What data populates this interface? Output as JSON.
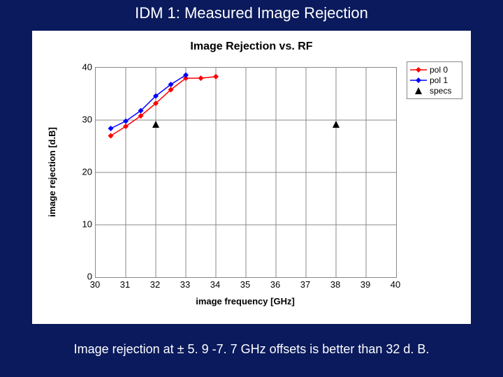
{
  "slide": {
    "title": "IDM 1: Measured Image Rejection",
    "caption": "Image rejection at ± 5. 9 -7. 7 GHz offsets is better than 32 d. B.",
    "background_color": "#0a1a5c"
  },
  "chart": {
    "type": "line",
    "title": "Image Rejection vs. RF",
    "title_fontsize": 16,
    "background_color": "#ffffff",
    "grid_color": "#888888",
    "x": {
      "label": "image frequency [GHz]",
      "min": 30,
      "max": 40,
      "ticks": [
        30,
        31,
        32,
        33,
        34,
        35,
        36,
        37,
        38,
        39,
        40
      ],
      "major_gridlines": [
        31,
        32,
        33,
        34,
        35,
        36,
        37,
        38,
        39
      ],
      "label_fontsize": 13
    },
    "y": {
      "label": "image rejection [d.B]",
      "min": 0,
      "max": 40,
      "ticks": [
        0,
        10,
        20,
        30,
        40
      ],
      "major_gridlines": [
        10,
        20,
        30
      ],
      "label_fontsize": 13
    },
    "series": [
      {
        "name": "pol 0",
        "color": "#ff0000",
        "marker": "diamond",
        "marker_size": 4,
        "line_width": 1.5,
        "points": [
          {
            "x": 30.5,
            "y": 27.0
          },
          {
            "x": 31.0,
            "y": 28.8
          },
          {
            "x": 31.5,
            "y": 30.8
          },
          {
            "x": 32.0,
            "y": 33.2
          },
          {
            "x": 32.5,
            "y": 35.8
          },
          {
            "x": 33.0,
            "y": 38.0
          },
          {
            "x": 33.5,
            "y": 38.0
          },
          {
            "x": 34.0,
            "y": 38.3
          }
        ]
      },
      {
        "name": "pol 1",
        "color": "#0000ff",
        "marker": "diamond",
        "marker_size": 4,
        "line_width": 1.5,
        "points": [
          {
            "x": 30.5,
            "y": 28.4
          },
          {
            "x": 31.0,
            "y": 29.8
          },
          {
            "x": 31.5,
            "y": 31.8
          },
          {
            "x": 32.0,
            "y": 34.6
          },
          {
            "x": 32.5,
            "y": 36.8
          },
          {
            "x": 33.0,
            "y": 38.6
          }
        ]
      },
      {
        "name": "specs",
        "color": "#000000",
        "marker": "triangle",
        "marker_size": 5,
        "line_width": 0,
        "points": [
          {
            "x": 32.0,
            "y": 29.2
          },
          {
            "x": 38.0,
            "y": 29.2
          }
        ]
      }
    ],
    "legend": {
      "border_color": "#888888",
      "entries": [
        {
          "label": "pol 0",
          "series": 0
        },
        {
          "label": "pol 1",
          "series": 1
        },
        {
          "label": "specs",
          "series": 2
        }
      ]
    }
  }
}
